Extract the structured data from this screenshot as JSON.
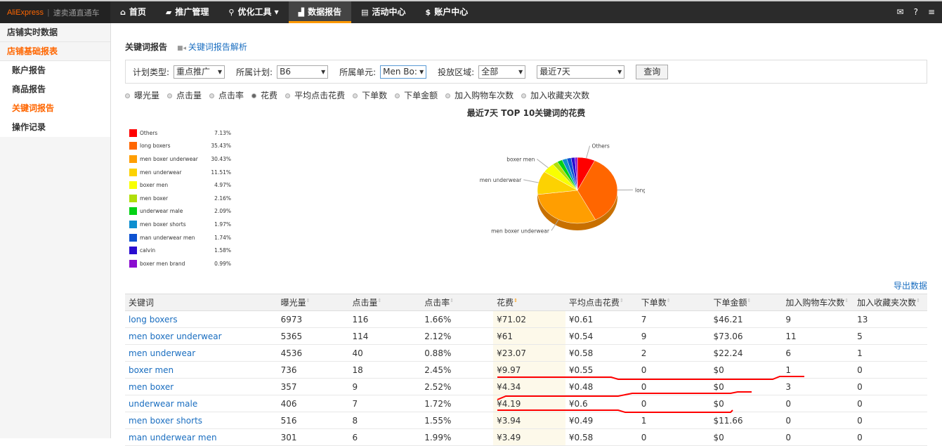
{
  "logo": {
    "brand": "AliExpress",
    "product": "速卖通直通车"
  },
  "nav": [
    {
      "icon": "home-icon",
      "glyph": "⌂",
      "label": "首页"
    },
    {
      "icon": "briefcase-icon",
      "glyph": "▰",
      "label": "推广管理"
    },
    {
      "icon": "search-icon",
      "glyph": "⚲",
      "label": "优化工具 ▾"
    },
    {
      "icon": "bar-chart-icon",
      "glyph": "▟",
      "label": "数据报告",
      "active": true
    },
    {
      "icon": "document-icon",
      "glyph": "▤",
      "label": "活动中心"
    },
    {
      "icon": "dollar-icon",
      "glyph": "$",
      "label": "账户中心"
    }
  ],
  "topright": [
    {
      "icon": "mail-icon",
      "glyph": "✉"
    },
    {
      "icon": "help-icon",
      "glyph": "?"
    },
    {
      "icon": "menu-icon",
      "glyph": "≡"
    }
  ],
  "sidebar": [
    "店铺实时数据",
    "店铺基础报表",
    "账户报告",
    "商品报告",
    "关键词报告",
    "操作记录"
  ],
  "page": {
    "title": "关键词报告",
    "help_link": "关键词报告解析",
    "export": "导出数据"
  },
  "filters": {
    "plan_type_label": "计划类型:",
    "plan_type": "重点推广",
    "plan_label": "所属计划:",
    "plan": "B6",
    "unit_label": "所属单元:",
    "unit": "Men Bo:",
    "region_label": "投放区域:",
    "region": "全部",
    "period": "最近7天",
    "query": "查询"
  },
  "metrics": [
    "曝光量",
    "点击量",
    "点击率",
    "花费",
    "平均点击花费",
    "下单数",
    "下单金额",
    "加入购物车次数",
    "加入收藏夹次数"
  ],
  "selected_metric": "花费",
  "chart_data": {
    "type": "pie",
    "title": "最近7天 TOP 10关键词的花费",
    "categories": [
      "Others",
      "long boxers",
      "men boxer underwear",
      "men underwear",
      "boxer men",
      "men boxer",
      "underwear male",
      "men boxer shorts",
      "man underwear men",
      "calvin",
      "boxer men brand"
    ],
    "values": [
      7.13,
      35.43,
      30.43,
      11.51,
      4.97,
      2.16,
      2.09,
      1.97,
      1.74,
      1.58,
      0.99
    ],
    "labels": [
      "7.13%",
      "35.43%",
      "30.43%",
      "11.51%",
      "4.97%",
      "2.16%",
      "2.09%",
      "1.97%",
      "1.74%",
      "1.58%",
      "0.99%"
    ],
    "colors": [
      "#ff0000",
      "#ff6600",
      "#ff9e01",
      "#fcd202",
      "#f8ff01",
      "#b0de09",
      "#04d215",
      "#0d8ecf",
      "#0d52d1",
      "#2a0cd0",
      "#8a0ccf"
    ],
    "legend": "left"
  },
  "table": {
    "headers": [
      "关键词",
      "曝光量",
      "点击量",
      "点击率",
      "花费",
      "平均点击花费",
      "下单数",
      "下单金额",
      "加入购物车次数",
      "加入收藏夹次数"
    ],
    "rows": [
      [
        "long boxers",
        "6973",
        "116",
        "1.66%",
        "¥71.02",
        "¥0.61",
        "7",
        "$46.21",
        "9",
        "13"
      ],
      [
        "men boxer underwear",
        "5365",
        "114",
        "2.12%",
        "¥61",
        "¥0.54",
        "9",
        "$73.06",
        "11",
        "5"
      ],
      [
        "men underwear",
        "4536",
        "40",
        "0.88%",
        "¥23.07",
        "¥0.58",
        "2",
        "$22.24",
        "6",
        "1"
      ],
      [
        "boxer men",
        "736",
        "18",
        "2.45%",
        "¥9.97",
        "¥0.55",
        "0",
        "$0",
        "1",
        "0"
      ],
      [
        "men boxer",
        "357",
        "9",
        "2.52%",
        "¥4.34",
        "¥0.48",
        "0",
        "$0",
        "3",
        "0"
      ],
      [
        "underwear male",
        "406",
        "7",
        "1.72%",
        "¥4.19",
        "¥0.6",
        "0",
        "$0",
        "0",
        "0"
      ],
      [
        "men boxer shorts",
        "516",
        "8",
        "1.55%",
        "¥3.94",
        "¥0.49",
        "1",
        "$11.66",
        "0",
        "0"
      ],
      [
        "man underwear men",
        "301",
        "6",
        "1.99%",
        "¥3.49",
        "¥0.58",
        "0",
        "$0",
        "0",
        "0"
      ]
    ]
  }
}
